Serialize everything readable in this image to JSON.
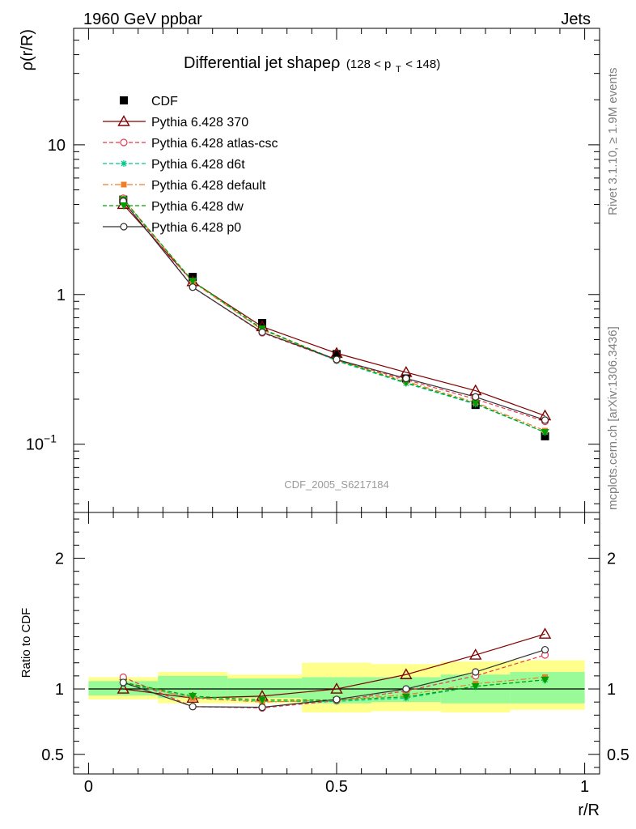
{
  "header": {
    "left": "1960 GeV ppbar",
    "right": "Jets"
  },
  "side_labels": {
    "top": "Rivet 3.1.10, ≥ 1.9M events",
    "bottom": "mcplots.cern.ch [arXiv:1306.3436]"
  },
  "chart_data": [
    {
      "type": "line",
      "title_main": "Differential jet shapeρ",
      "title_sub": "(128 < p",
      "title_sub_index": "T",
      "title_sub_end": " < 148)",
      "ylabel": "ρ(r/R)",
      "xlabel": "",
      "yscale": "log",
      "ylim": [
        0.035,
        60
      ],
      "xlim": [
        -0.03,
        1.03
      ],
      "yticks": [
        {
          "v": 0.1,
          "base": "10",
          "exp": "−1"
        },
        {
          "v": 1,
          "label": "1"
        },
        {
          "v": 10,
          "label": "10"
        }
      ],
      "watermark": "CDF_2005_S6217184",
      "legend_position": "top-left",
      "x": [
        0.07,
        0.21,
        0.35,
        0.5,
        0.64,
        0.78,
        0.92
      ],
      "series": [
        {
          "name": "CDF",
          "color": "#000000",
          "marker": "square-filled",
          "line": "none",
          "values": [
            4.3,
            1.31,
            0.645,
            0.4,
            0.275,
            0.183,
            0.113
          ]
        },
        {
          "name": "Pythia 6.428 370",
          "color": "#800000",
          "marker": "triangle-open",
          "line": "solid",
          "values": [
            4.0,
            1.22,
            0.61,
            0.405,
            0.302,
            0.228,
            0.155
          ]
        },
        {
          "name": "Pythia 6.428 atlas-csc",
          "color": "#e8384f",
          "marker": "circle-open",
          "line": "dashed",
          "values": [
            4.4,
            1.12,
            0.555,
            0.365,
            0.27,
            0.2,
            0.142
          ]
        },
        {
          "name": "Pythia 6.428 d6t",
          "color": "#00c88c",
          "marker": "star",
          "line": "dashed",
          "values": [
            4.35,
            1.22,
            0.585,
            0.36,
            0.255,
            0.185,
            0.12
          ]
        },
        {
          "name": "Pythia 6.428 default",
          "color": "#f07d28",
          "marker": "square-filled-small",
          "line": "dashdot",
          "values": [
            4.35,
            1.21,
            0.58,
            0.365,
            0.263,
            0.19,
            0.123
          ]
        },
        {
          "name": "Pythia 6.428 dw",
          "color": "#00a000",
          "marker": "triangle-down-filled",
          "line": "dashed",
          "values": [
            4.3,
            1.23,
            0.59,
            0.365,
            0.258,
            0.187,
            0.12
          ]
        },
        {
          "name": "Pythia 6.428 p0",
          "color": "#303030",
          "marker": "circle-open",
          "line": "solid",
          "values": [
            4.2,
            1.12,
            0.56,
            0.368,
            0.275,
            0.207,
            0.145
          ]
        }
      ]
    },
    {
      "type": "line",
      "ylabel": "Ratio to CDF",
      "xlabel": "r/R",
      "ylim": [
        0.35,
        2.35
      ],
      "xlim": [
        -0.03,
        1.03
      ],
      "yticks": [
        0.5,
        1,
        2
      ],
      "ytick_labels": [
        "0.5",
        "1",
        "2"
      ],
      "xticks": [
        0,
        0.5,
        1
      ],
      "xtick_labels": [
        "0",
        "0.5",
        "1"
      ],
      "reference_line": 1,
      "x": [
        0.07,
        0.21,
        0.35,
        0.5,
        0.64,
        0.78,
        0.92
      ],
      "bands": {
        "edges": [
          0,
          0.14,
          0.28,
          0.43,
          0.57,
          0.71,
          0.85,
          1.0
        ],
        "inner": {
          "color": "#98fb98",
          "low": [
            0.95,
            0.93,
            0.93,
            0.89,
            0.9,
            0.89,
            0.89
          ],
          "high": [
            1.06,
            1.1,
            1.08,
            1.09,
            1.09,
            1.11,
            1.13
          ]
        },
        "outer": {
          "color": "#ffff8c",
          "low": [
            0.92,
            0.89,
            0.89,
            0.82,
            0.83,
            0.82,
            0.84
          ],
          "high": [
            1.09,
            1.13,
            1.11,
            1.2,
            1.19,
            1.21,
            1.22
          ]
        }
      },
      "series": [
        {
          "name": "Pythia 6.428 370",
          "values": [
            1.0,
            0.93,
            0.945,
            1.0,
            1.11,
            1.26,
            1.42
          ]
        },
        {
          "name": "Pythia 6.428 atlas-csc",
          "values": [
            1.09,
            0.865,
            0.855,
            0.91,
            0.985,
            1.1,
            1.26
          ]
        },
        {
          "name": "Pythia 6.428 d6t",
          "values": [
            1.04,
            0.935,
            0.905,
            0.905,
            0.93,
            1.02,
            1.07
          ]
        },
        {
          "name": "Pythia 6.428 default",
          "values": [
            1.05,
            0.93,
            0.9,
            0.915,
            0.955,
            1.04,
            1.09
          ]
        },
        {
          "name": "Pythia 6.428 dw",
          "values": [
            1.05,
            0.945,
            0.915,
            0.915,
            0.94,
            1.02,
            1.07
          ]
        },
        {
          "name": "Pythia 6.428 p0",
          "values": [
            1.05,
            0.865,
            0.86,
            0.92,
            1.0,
            1.13,
            1.3
          ]
        }
      ]
    }
  ]
}
